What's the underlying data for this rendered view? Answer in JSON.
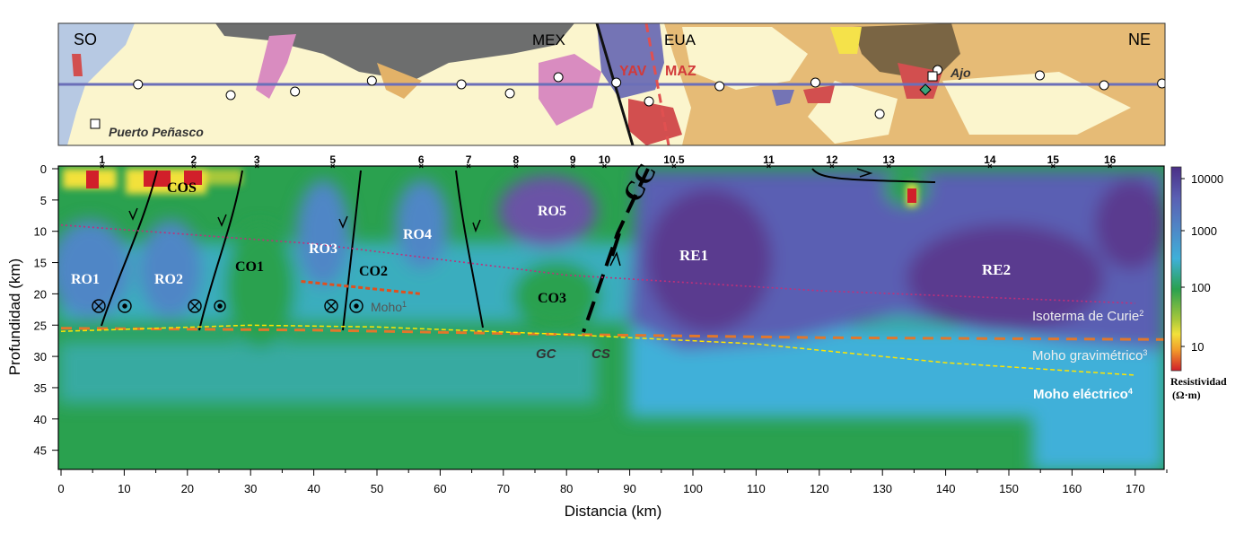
{
  "map": {
    "corner_left": "SO",
    "corner_right": "NE",
    "label_mex": "MEX",
    "label_eua": "EUA",
    "label_yav": "YAV",
    "label_maz": "MAZ",
    "label_ajo": "Ajo",
    "label_puerto": "Puerto Peñasco"
  },
  "section": {
    "ylabel": "Profundidad (km)",
    "xlabel": "Distancia (km)",
    "x_ticks": [
      "0",
      "10",
      "20",
      "30",
      "40",
      "50",
      "60",
      "70",
      "80",
      "90",
      "100",
      "110",
      "120",
      "130",
      "140",
      "150",
      "160",
      "170"
    ],
    "y_ticks": [
      "0",
      "5",
      "10",
      "15",
      "20",
      "25",
      "30",
      "35",
      "40",
      "45"
    ],
    "stations": [
      "1",
      "2",
      "3",
      "5",
      "6",
      "7",
      "8",
      "9",
      "10",
      "10.5",
      "11",
      "12",
      "13",
      "14",
      "15",
      "16"
    ],
    "regions": {
      "cos": "COS",
      "ro1": "RO1",
      "ro2": "RO2",
      "co1": "CO1",
      "ro3": "RO3",
      "co2": "CO2",
      "ro4": "RO4",
      "ro5": "RO5",
      "co3": "CO3",
      "re1": "RE1",
      "re2": "RE2",
      "cc": "CC",
      "gc": "GC",
      "cs": "CS"
    },
    "moho_label": "Moho",
    "moho_sup": "1",
    "legend_curie": "Isoterma de Curie",
    "legend_curie_sup": "2",
    "legend_moho_grav": "Moho gravimétrico",
    "legend_moho_grav_sup": "3",
    "legend_moho_elec": "Moho eléctrico",
    "legend_moho_elec_sup": "4"
  },
  "colorbar": {
    "ticks": [
      "10000",
      "1000",
      "100",
      "10"
    ],
    "title1": "Resistividad",
    "title2": "(Ω·m)"
  },
  "chart_data": {
    "type": "heatmap",
    "xlabel": "Distancia (km)",
    "ylabel": "Profundidad (km)",
    "xlim": [
      0,
      175
    ],
    "ylim": [
      48,
      0
    ],
    "color_scale": "log resistivity 3–15000 Ω·m (red→yellow→green→cyan→blue→purple)",
    "stations": [
      {
        "label": "1",
        "x": 6.5
      },
      {
        "label": "2",
        "x": 21
      },
      {
        "label": "3",
        "x": 31
      },
      {
        "label": "5",
        "x": 43
      },
      {
        "label": "6",
        "x": 57
      },
      {
        "label": "7",
        "x": 64.5
      },
      {
        "label": "8",
        "x": 72
      },
      {
        "label": "9",
        "x": 81
      },
      {
        "label": "10",
        "x": 86
      },
      {
        "label": "10.5",
        "x": 97
      },
      {
        "label": "11",
        "x": 112
      },
      {
        "label": "12",
        "x": 122
      },
      {
        "label": "13",
        "x": 131
      },
      {
        "label": "14",
        "x": 147
      },
      {
        "label": "15",
        "x": 157
      },
      {
        "label": "16",
        "x": 166
      }
    ],
    "regions": [
      {
        "name": "COS",
        "x": 20,
        "depth": 2.5
      },
      {
        "name": "RO1",
        "x": 4,
        "depth": 17.5
      },
      {
        "name": "RO2",
        "x": 17,
        "depth": 17.5
      },
      {
        "name": "CO1",
        "x": 30,
        "depth": 15.5
      },
      {
        "name": "RO3",
        "x": 42,
        "depth": 13
      },
      {
        "name": "CO2",
        "x": 50,
        "depth": 16
      },
      {
        "name": "RO4",
        "x": 57,
        "depth": 10
      },
      {
        "name": "RO5",
        "x": 78,
        "depth": 6.5
      },
      {
        "name": "CO3",
        "x": 78,
        "depth": 20.5
      },
      {
        "name": "RE1",
        "x": 100,
        "depth": 13.5
      },
      {
        "name": "RE2",
        "x": 148,
        "depth": 16.5
      }
    ],
    "series": [
      {
        "name": "Isoterma de Curie",
        "x": [
          0,
          40,
          80,
          120,
          170
        ],
        "y": [
          9,
          12,
          17,
          19.5,
          21.5
        ]
      },
      {
        "name": "Moho gravimétrico",
        "x": [
          0,
          40,
          80,
          120,
          175
        ],
        "y": [
          25.5,
          25.8,
          26.5,
          27,
          27.3
        ]
      },
      {
        "name": "Moho eléctrico",
        "x": [
          0,
          30,
          50,
          80,
          110,
          140,
          170
        ],
        "y": [
          26,
          25,
          25.3,
          26.5,
          28,
          31,
          33
        ]
      },
      {
        "name": "Moho",
        "x": [
          38,
          57
        ],
        "y": [
          18,
          20
        ]
      }
    ]
  },
  "colors": {
    "purple": "#5a3b8f",
    "blue": "#4f86c6",
    "cyan": "#3fb0d9",
    "green": "#2aa14f",
    "yellow": "#f2e13a",
    "red": "#d11f2a",
    "curie": "#c0307a",
    "moho_grav": "#e2772b",
    "moho_elec": "#ffe500"
  }
}
